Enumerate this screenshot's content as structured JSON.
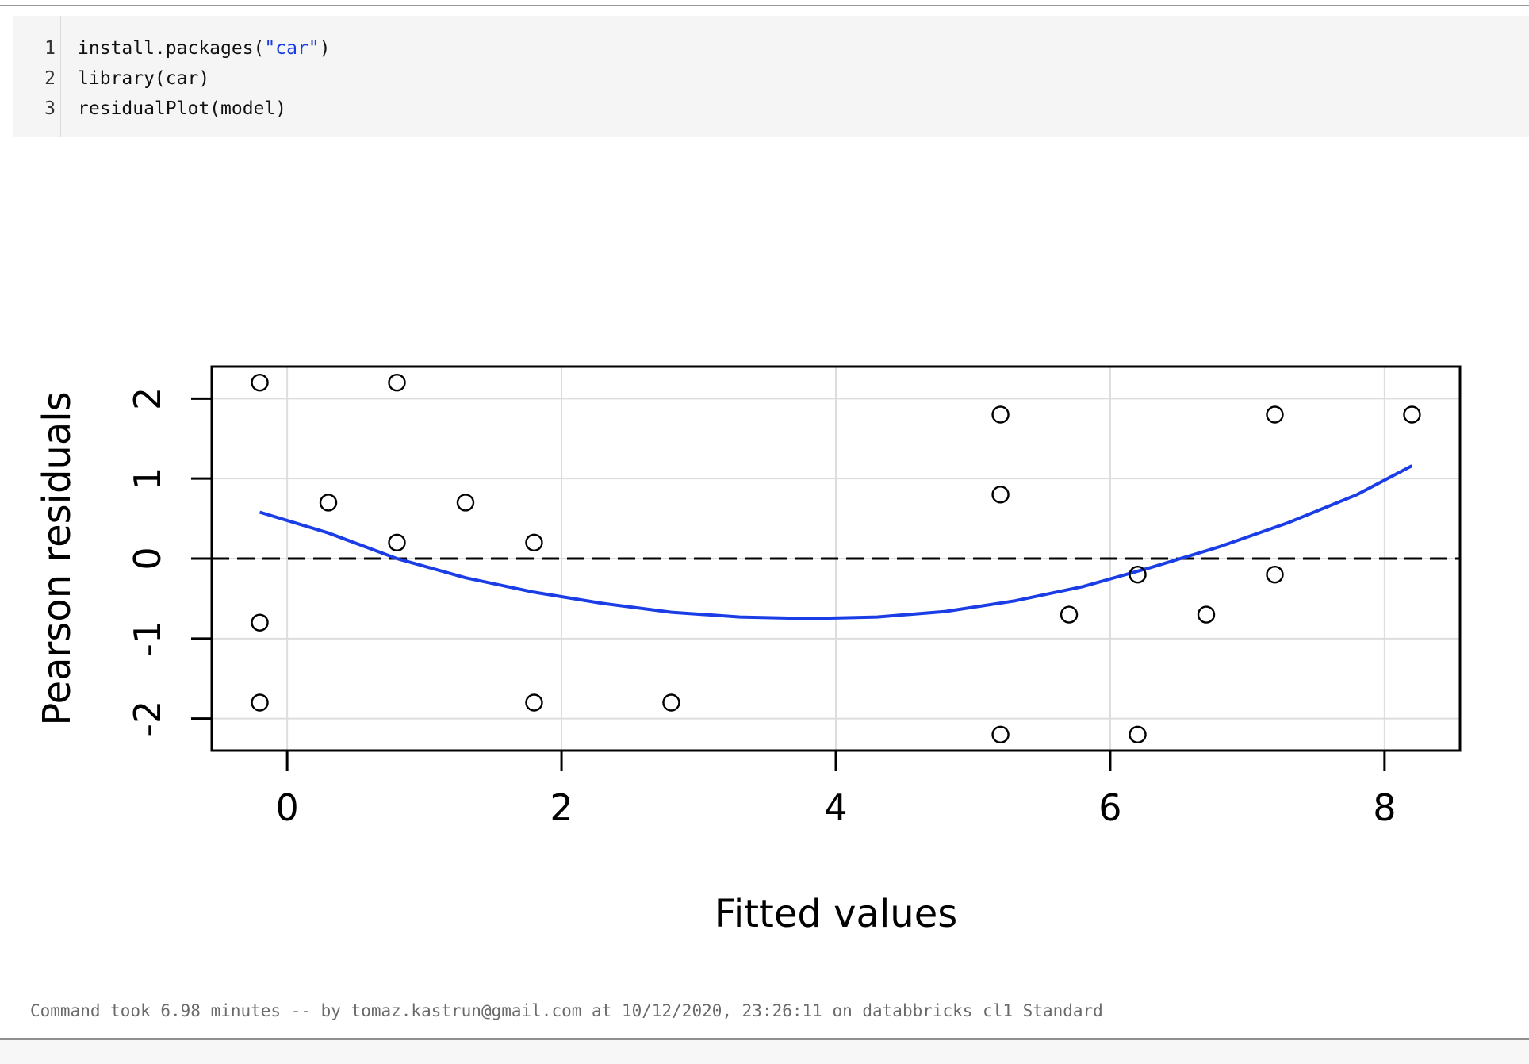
{
  "code": {
    "lines": [
      {
        "num": "1",
        "pre": "install.packages(",
        "str": "\"car\"",
        "post": ")"
      },
      {
        "num": "2",
        "pre": "library(car)",
        "str": "",
        "post": ""
      },
      {
        "num": "3",
        "pre": "residualPlot(model)",
        "str": "",
        "post": ""
      }
    ]
  },
  "status_text": "Command took 6.98 minutes -- by tomaz.kastrun@gmail.com at 10/12/2020, 23:26:11 on databbricks_cl1_Standard",
  "chart_data": {
    "type": "scatter",
    "xlabel": "Fitted values",
    "ylabel": "Pearson residuals",
    "xlim": [
      -0.55,
      8.55
    ],
    "ylim": [
      -2.4,
      2.4
    ],
    "xticks": [
      0,
      2,
      4,
      6,
      8
    ],
    "yticks": [
      -2,
      -1,
      0,
      1,
      2
    ],
    "grid": true,
    "reference_line": {
      "y": 0,
      "style": "dashed"
    },
    "points": [
      {
        "x": -0.2,
        "y": 2.2
      },
      {
        "x": 0.8,
        "y": 2.2
      },
      {
        "x": 5.2,
        "y": 1.8
      },
      {
        "x": 7.2,
        "y": 1.8
      },
      {
        "x": 8.2,
        "y": 1.8
      },
      {
        "x": 0.3,
        "y": 0.7
      },
      {
        "x": 1.3,
        "y": 0.7
      },
      {
        "x": 5.2,
        "y": 0.8
      },
      {
        "x": 0.8,
        "y": 0.2
      },
      {
        "x": 1.8,
        "y": 0.2
      },
      {
        "x": 6.2,
        "y": -0.2
      },
      {
        "x": 7.2,
        "y": -0.2
      },
      {
        "x": 5.7,
        "y": -0.7
      },
      {
        "x": 6.7,
        "y": -0.7
      },
      {
        "x": -0.2,
        "y": -0.8
      },
      {
        "x": -0.2,
        "y": -1.8
      },
      {
        "x": 1.8,
        "y": -1.8
      },
      {
        "x": 2.8,
        "y": -1.8
      },
      {
        "x": 5.2,
        "y": -2.2
      },
      {
        "x": 6.2,
        "y": -2.2
      }
    ],
    "curve": {
      "color": "#1a3de6",
      "x": [
        -0.2,
        0.3,
        0.8,
        1.3,
        1.8,
        2.3,
        2.8,
        3.3,
        3.8,
        4.3,
        4.8,
        5.3,
        5.8,
        6.3,
        6.8,
        7.3,
        7.8,
        8.2
      ],
      "y": [
        0.58,
        0.32,
        0.0,
        -0.24,
        -0.42,
        -0.56,
        -0.67,
        -0.73,
        -0.75,
        -0.73,
        -0.66,
        -0.53,
        -0.35,
        -0.11,
        0.15,
        0.45,
        0.8,
        1.16
      ]
    }
  }
}
